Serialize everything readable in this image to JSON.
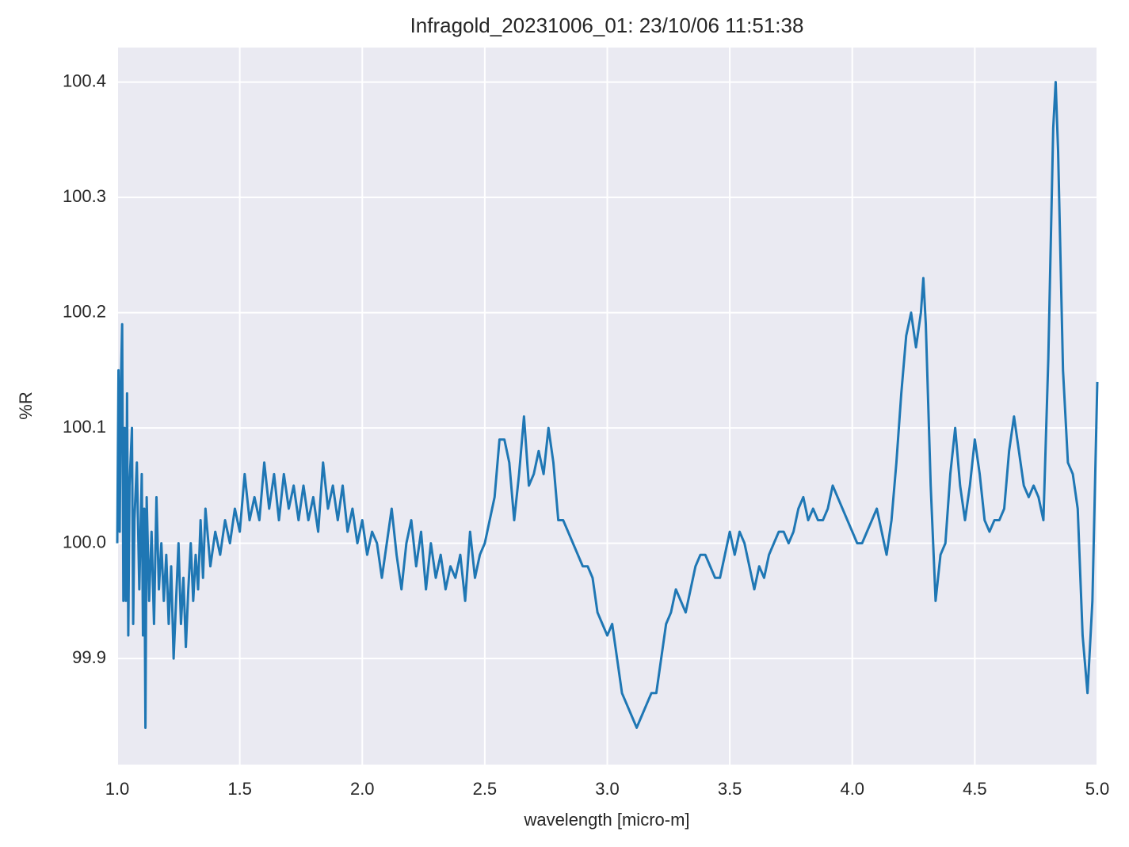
{
  "chart_data": {
    "type": "line",
    "title": "Infragold_20231006_01:  23/10/06 11:51:38",
    "xlabel": "wavelength [micro-m]",
    "ylabel": "%R",
    "color": "#1f77b4",
    "grid": true,
    "xlim": [
      1.0,
      5.0
    ],
    "ylim": [
      99.808,
      100.43
    ],
    "xticks": [
      {
        "value": 1.0,
        "label": "1.0"
      },
      1.5,
      {
        "value": 2.0,
        "label": "2.0"
      },
      2.5,
      {
        "value": 3.0,
        "label": "3.0"
      },
      3.5,
      {
        "value": 4.0,
        "label": "4.0"
      },
      4.5,
      {
        "value": 5.0,
        "label": "5.0"
      }
    ],
    "yticks": [
      99.9,
      {
        "value": 100.0,
        "label": "100.0"
      },
      100.1,
      100.2,
      100.3,
      100.4
    ],
    "x": [
      1.0,
      1.005,
      1.01,
      1.015,
      1.02,
      1.025,
      1.03,
      1.035,
      1.04,
      1.045,
      1.05,
      1.06,
      1.065,
      1.07,
      1.08,
      1.09,
      1.1,
      1.105,
      1.11,
      1.115,
      1.12,
      1.13,
      1.14,
      1.15,
      1.16,
      1.17,
      1.18,
      1.19,
      1.2,
      1.21,
      1.22,
      1.23,
      1.24,
      1.25,
      1.26,
      1.27,
      1.28,
      1.29,
      1.3,
      1.31,
      1.32,
      1.33,
      1.34,
      1.35,
      1.36,
      1.38,
      1.4,
      1.42,
      1.44,
      1.46,
      1.48,
      1.5,
      1.52,
      1.54,
      1.56,
      1.58,
      1.6,
      1.62,
      1.64,
      1.66,
      1.68,
      1.7,
      1.72,
      1.74,
      1.76,
      1.78,
      1.8,
      1.82,
      1.84,
      1.86,
      1.88,
      1.9,
      1.92,
      1.94,
      1.96,
      1.98,
      2.0,
      2.02,
      2.04,
      2.06,
      2.08,
      2.1,
      2.12,
      2.14,
      2.16,
      2.18,
      2.2,
      2.22,
      2.24,
      2.26,
      2.28,
      2.3,
      2.32,
      2.34,
      2.36,
      2.38,
      2.4,
      2.42,
      2.44,
      2.46,
      2.48,
      2.5,
      2.52,
      2.54,
      2.56,
      2.58,
      2.6,
      2.62,
      2.64,
      2.66,
      2.68,
      2.7,
      2.72,
      2.74,
      2.76,
      2.78,
      2.8,
      2.82,
      2.84,
      2.86,
      2.88,
      2.9,
      2.92,
      2.94,
      2.96,
      2.98,
      3.0,
      3.02,
      3.04,
      3.06,
      3.08,
      3.1,
      3.12,
      3.14,
      3.16,
      3.18,
      3.2,
      3.22,
      3.24,
      3.26,
      3.28,
      3.3,
      3.32,
      3.34,
      3.36,
      3.38,
      3.4,
      3.42,
      3.44,
      3.46,
      3.48,
      3.5,
      3.52,
      3.54,
      3.56,
      3.58,
      3.6,
      3.62,
      3.64,
      3.66,
      3.68,
      3.7,
      3.72,
      3.74,
      3.76,
      3.78,
      3.8,
      3.82,
      3.84,
      3.86,
      3.88,
      3.9,
      3.92,
      3.94,
      3.96,
      3.98,
      4.0,
      4.02,
      4.04,
      4.06,
      4.08,
      4.1,
      4.12,
      4.14,
      4.16,
      4.18,
      4.2,
      4.22,
      4.24,
      4.26,
      4.28,
      4.29,
      4.3,
      4.32,
      4.34,
      4.36,
      4.38,
      4.4,
      4.42,
      4.44,
      4.46,
      4.48,
      4.5,
      4.52,
      4.54,
      4.56,
      4.58,
      4.6,
      4.62,
      4.64,
      4.66,
      4.68,
      4.7,
      4.72,
      4.74,
      4.76,
      4.78,
      4.8,
      4.82,
      4.83,
      4.84,
      4.86,
      4.88,
      4.9,
      4.92,
      4.94,
      4.96,
      4.98,
      5.0
    ],
    "values": [
      100.0,
      100.15,
      100.01,
      100.14,
      100.19,
      99.95,
      100.1,
      99.95,
      100.13,
      99.92,
      100.05,
      100.1,
      99.93,
      100.02,
      100.07,
      99.96,
      100.06,
      99.92,
      100.03,
      99.84,
      100.04,
      99.95,
      100.01,
      99.93,
      100.04,
      99.96,
      100.0,
      99.95,
      99.99,
      99.93,
      99.98,
      99.9,
      99.95,
      100.0,
      99.93,
      99.97,
      99.91,
      99.96,
      100.0,
      99.95,
      99.99,
      99.96,
      100.02,
      99.97,
      100.03,
      99.98,
      100.01,
      99.99,
      100.02,
      100.0,
      100.03,
      100.01,
      100.06,
      100.02,
      100.04,
      100.02,
      100.07,
      100.03,
      100.06,
      100.02,
      100.06,
      100.03,
      100.05,
      100.02,
      100.05,
      100.02,
      100.04,
      100.01,
      100.07,
      100.03,
      100.05,
      100.02,
      100.05,
      100.01,
      100.03,
      100.0,
      100.02,
      99.99,
      100.01,
      100.0,
      99.97,
      100.0,
      100.03,
      99.99,
      99.96,
      100.0,
      100.02,
      99.98,
      100.01,
      99.96,
      100.0,
      99.97,
      99.99,
      99.96,
      99.98,
      99.97,
      99.99,
      99.95,
      100.01,
      99.97,
      99.99,
      100.0,
      100.02,
      100.04,
      100.09,
      100.09,
      100.07,
      100.02,
      100.06,
      100.11,
      100.05,
      100.06,
      100.08,
      100.06,
      100.1,
      100.07,
      100.02,
      100.02,
      100.01,
      100.0,
      99.99,
      99.98,
      99.98,
      99.97,
      99.94,
      99.93,
      99.92,
      99.93,
      99.9,
      99.87,
      99.86,
      99.85,
      99.84,
      99.85,
      99.86,
      99.87,
      99.87,
      99.9,
      99.93,
      99.94,
      99.96,
      99.95,
      99.94,
      99.96,
      99.98,
      99.99,
      99.99,
      99.98,
      99.97,
      99.97,
      99.99,
      100.01,
      99.99,
      100.01,
      100.0,
      99.98,
      99.96,
      99.98,
      99.97,
      99.99,
      100.0,
      100.01,
      100.01,
      100.0,
      100.01,
      100.03,
      100.04,
      100.02,
      100.03,
      100.02,
      100.02,
      100.03,
      100.05,
      100.04,
      100.03,
      100.02,
      100.01,
      100.0,
      100.0,
      100.01,
      100.02,
      100.03,
      100.01,
      99.99,
      100.02,
      100.07,
      100.13,
      100.18,
      100.2,
      100.17,
      100.2,
      100.23,
      100.19,
      100.05,
      99.95,
      99.99,
      100.0,
      100.06,
      100.1,
      100.05,
      100.02,
      100.05,
      100.09,
      100.06,
      100.02,
      100.01,
      100.02,
      100.02,
      100.03,
      100.08,
      100.11,
      100.08,
      100.05,
      100.04,
      100.05,
      100.04,
      100.02,
      100.16,
      100.36,
      100.4,
      100.34,
      100.15,
      100.07,
      100.06,
      100.03,
      99.92,
      99.87,
      99.95,
      100.14
    ]
  }
}
